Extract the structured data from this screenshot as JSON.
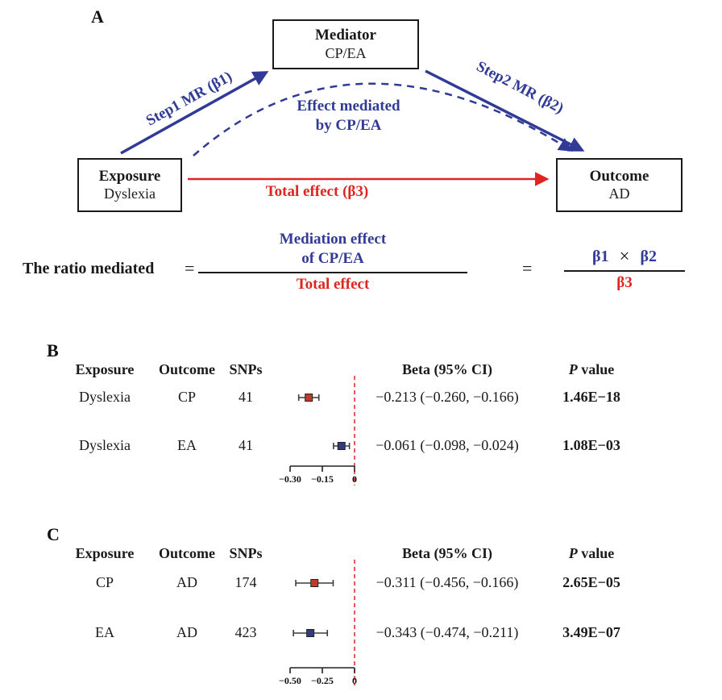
{
  "colors": {
    "blue": "#313b96",
    "red": "#e02420",
    "marker-red": "#c0392b",
    "marker-blue": "#333a80",
    "ink": "#1a1a1a"
  },
  "panelA": {
    "label": "A",
    "boxes": {
      "mediator": {
        "title": "Mediator",
        "subtitle": "CP/EA"
      },
      "exposure": {
        "title": "Exposure",
        "subtitle": "Dyslexia"
      },
      "outcome": {
        "title": "Outcome",
        "subtitle": "AD"
      }
    },
    "arrow_labels": {
      "step1": "Step1 MR (β1)",
      "step2": "Step2 MR (β2)",
      "mediated_line1": "Effect mediated",
      "mediated_line2": "by CP/EA",
      "total": "Total effect (β3)"
    },
    "equation": {
      "lhs": "The ratio mediated",
      "equals1": "=",
      "equals2": "=",
      "frac1": {
        "num_line1": "Mediation effect",
        "num_line2": "of CP/EA",
        "den": "Total effect"
      },
      "frac2": {
        "beta1": "β1",
        "times": "×",
        "beta2": "β2",
        "den": "β3"
      }
    }
  },
  "panelB": {
    "label": "B",
    "header": {
      "exposure": "Exposure",
      "outcome": "Outcome",
      "snps": "SNPs",
      "beta": "Beta (95% CI)",
      "p_italic": "P",
      "p_rest": " value"
    }
  },
  "panelC": {
    "label": "C",
    "header": {
      "exposure": "Exposure",
      "outcome": "Outcome",
      "snps": "SNPs",
      "beta": "Beta (95% CI)",
      "p_italic": "P",
      "p_rest": " value"
    }
  },
  "chart_data": [
    {
      "type": "forest",
      "panel": "B",
      "columns": [
        "Exposure",
        "Outcome",
        "SNPs",
        "Beta (95% CI)",
        "P value"
      ],
      "rows": [
        {
          "exposure": "Dyslexia",
          "outcome": "CP",
          "snps": 41,
          "beta": -0.213,
          "ci": [
            -0.26,
            -0.166
          ],
          "beta_ci_text": "−0.213 (−0.260, −0.166)",
          "p": "1.46E−18",
          "marker_color": "#c0392b"
        },
        {
          "exposure": "Dyslexia",
          "outcome": "EA",
          "snps": 41,
          "beta": -0.061,
          "ci": [
            -0.098,
            -0.024
          ],
          "beta_ci_text": "−0.061 (−0.098, −0.024)",
          "p": "1.08E−03",
          "marker_color": "#333a80"
        }
      ],
      "axis": {
        "ticks": [
          -0.3,
          -0.15,
          0
        ],
        "tick_labels": [
          "−0.30",
          "−0.15",
          "0"
        ],
        "reference_line": 0,
        "range": [
          -0.33,
          0.02
        ],
        "grid": false
      }
    },
    {
      "type": "forest",
      "panel": "C",
      "columns": [
        "Exposure",
        "Outcome",
        "SNPs",
        "Beta (95% CI)",
        "P value"
      ],
      "rows": [
        {
          "exposure": "CP",
          "outcome": "AD",
          "snps": 174,
          "beta": -0.311,
          "ci": [
            -0.456,
            -0.166
          ],
          "beta_ci_text": "−0.311 (−0.456, −0.166)",
          "p": "2.65E−05",
          "marker_color": "#c0392b"
        },
        {
          "exposure": "EA",
          "outcome": "AD",
          "snps": 423,
          "beta": -0.343,
          "ci": [
            -0.474,
            -0.211
          ],
          "beta_ci_text": "−0.343 (−0.474, −0.211)",
          "p": "3.49E−07",
          "marker_color": "#333a80"
        }
      ],
      "axis": {
        "ticks": [
          -0.5,
          -0.25,
          0
        ],
        "tick_labels": [
          "−0.50",
          "−0.25",
          "0"
        ],
        "reference_line": 0,
        "range": [
          -0.55,
          0.02
        ],
        "grid": false
      }
    }
  ]
}
